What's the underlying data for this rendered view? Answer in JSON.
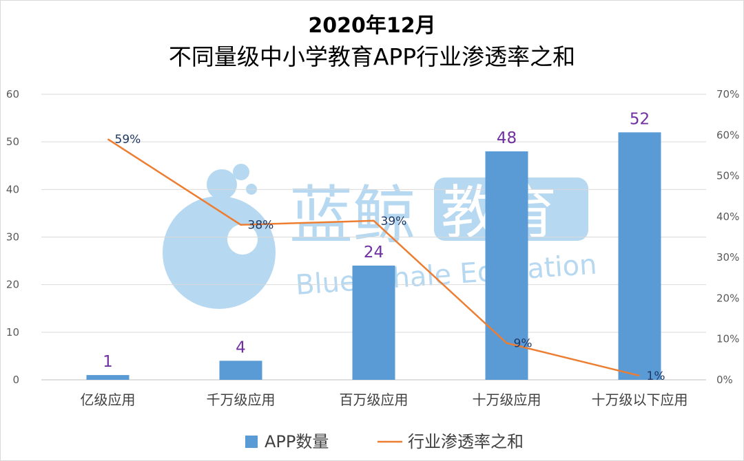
{
  "chart_data": {
    "type": "bar",
    "title": "2020年12月",
    "subtitle": "不同量级中小学教育APP行业渗透率之和",
    "categories": [
      "亿级应用",
      "千万级应用",
      "百万级应用",
      "十万级应用",
      "十万级以下应用"
    ],
    "series": [
      {
        "name": "APP数量",
        "type": "bar",
        "axis": "left",
        "values": [
          1,
          4,
          24,
          48,
          52
        ],
        "labels": [
          "1",
          "4",
          "24",
          "48",
          "52"
        ],
        "color": "#5b9bd5"
      },
      {
        "name": "行业渗透率之和",
        "type": "line",
        "axis": "right",
        "values": [
          59,
          38,
          39,
          9,
          1
        ],
        "labels": [
          "59%",
          "38%",
          "39%",
          "9%",
          "1%"
        ],
        "color": "#ed7d31"
      }
    ],
    "ylim": [
      0,
      60
    ],
    "yticks": [
      "0",
      "10",
      "20",
      "30",
      "40",
      "50",
      "60"
    ],
    "y2lim": [
      0,
      70
    ],
    "y2ticks": [
      "0%",
      "10%",
      "20%",
      "30%",
      "40%",
      "50%",
      "60%",
      "70%"
    ],
    "grid": true,
    "legend": "bottom",
    "label_color": "#7030a0"
  },
  "watermark": {
    "cn": "蓝鲸教育",
    "en": "Blue Whale Education",
    "color": "#9ecbec"
  }
}
